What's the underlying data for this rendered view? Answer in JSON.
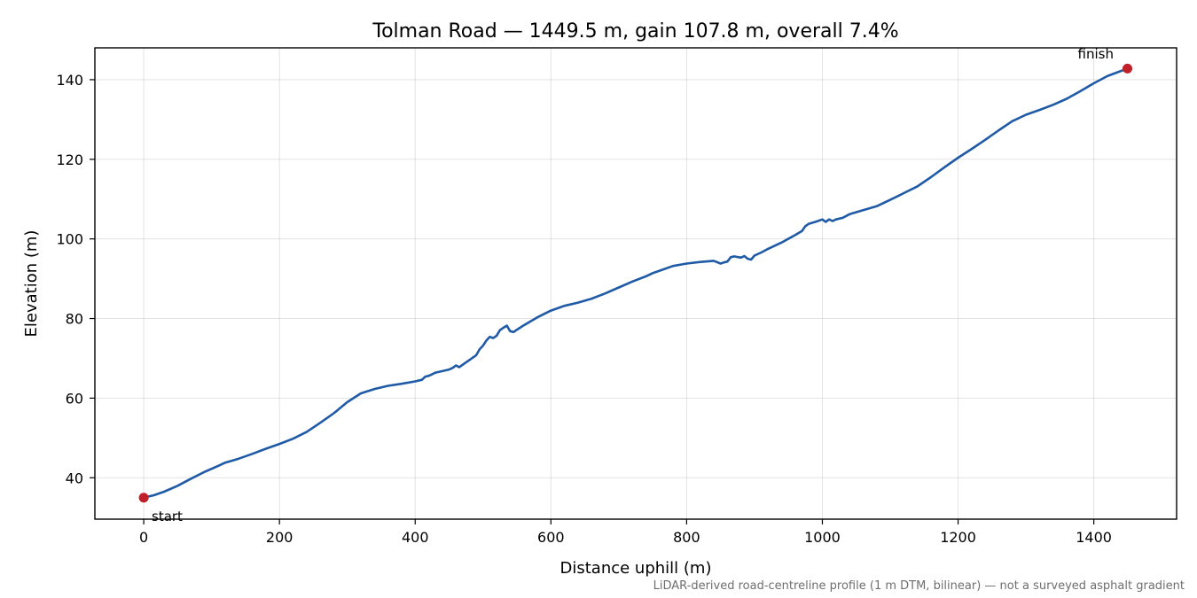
{
  "chart_data": {
    "type": "line",
    "title": "Tolman Road — 1449.5 m, gain 107.8 m, overall 7.4%",
    "xlabel": "Distance uphill (m)",
    "ylabel": "Elevation (m)",
    "xlim": [
      -72,
      1522
    ],
    "ylim": [
      29.6,
      148.0
    ],
    "xticks": [
      0,
      200,
      400,
      600,
      800,
      1000,
      1200,
      1400
    ],
    "yticks": [
      40,
      60,
      80,
      100,
      120,
      140
    ],
    "grid": true,
    "line_color": "#1f5aa6",
    "marker_color": "#c0202a",
    "series": [
      {
        "x": [
          0,
          15,
          30,
          50,
          70,
          90,
          110,
          120,
          140,
          160,
          180,
          200,
          220,
          240,
          260,
          280,
          300,
          320,
          340,
          360,
          380,
          400,
          410,
          415,
          420,
          425,
          430,
          440,
          450,
          455,
          460,
          465,
          470,
          480,
          490,
          495,
          500,
          505,
          510,
          515,
          520,
          525,
          530,
          535,
          540,
          545,
          550,
          560,
          580,
          600,
          620,
          640,
          660,
          680,
          700,
          720,
          740,
          750,
          760,
          780,
          800,
          820,
          840,
          850,
          855,
          860,
          865,
          870,
          880,
          885,
          890,
          895,
          900,
          910,
          920,
          940,
          960,
          970,
          975,
          980,
          990,
          1000,
          1005,
          1010,
          1015,
          1020,
          1030,
          1040,
          1060,
          1080,
          1100,
          1120,
          1140,
          1160,
          1180,
          1200,
          1220,
          1240,
          1260,
          1280,
          1300,
          1320,
          1340,
          1360,
          1380,
          1400,
          1420,
          1440,
          1449.5
        ],
        "y": [
          35.0,
          35.6,
          36.5,
          38.0,
          39.8,
          41.5,
          43.0,
          43.8,
          44.8,
          46.0,
          47.3,
          48.5,
          49.8,
          51.5,
          53.8,
          56.2,
          59.0,
          61.2,
          62.3,
          63.1,
          63.6,
          64.2,
          64.6,
          65.4,
          65.6,
          66.0,
          66.4,
          66.8,
          67.2,
          67.6,
          68.2,
          67.8,
          68.4,
          69.6,
          70.8,
          72.3,
          73.2,
          74.5,
          75.4,
          75.1,
          75.7,
          77.1,
          77.7,
          78.2,
          76.8,
          76.6,
          77.2,
          78.3,
          80.3,
          82.0,
          83.2,
          84.0,
          85.0,
          86.3,
          87.8,
          89.3,
          90.6,
          91.4,
          92.0,
          93.2,
          93.8,
          94.2,
          94.5,
          93.8,
          94.1,
          94.3,
          95.4,
          95.6,
          95.3,
          95.7,
          95.0,
          94.8,
          95.8,
          96.6,
          97.5,
          99.1,
          101.0,
          102.0,
          103.2,
          103.8,
          104.3,
          104.9,
          104.3,
          104.9,
          104.5,
          104.9,
          105.3,
          106.2,
          107.2,
          108.2,
          109.8,
          111.5,
          113.2,
          115.5,
          118.0,
          120.4,
          122.6,
          124.9,
          127.3,
          129.6,
          131.2,
          132.4,
          133.7,
          135.2,
          137.1,
          139.1,
          140.9,
          142.2,
          142.8
        ]
      }
    ],
    "annotations": {
      "start": {
        "label": "start",
        "x": 0,
        "y": 35.0
      },
      "finish": {
        "label": "finish",
        "x": 1449.5,
        "y": 142.8
      }
    },
    "footnote": "LiDAR-derived road-centreline profile (1 m DTM, bilinear) — not a surveyed asphalt gradient"
  }
}
